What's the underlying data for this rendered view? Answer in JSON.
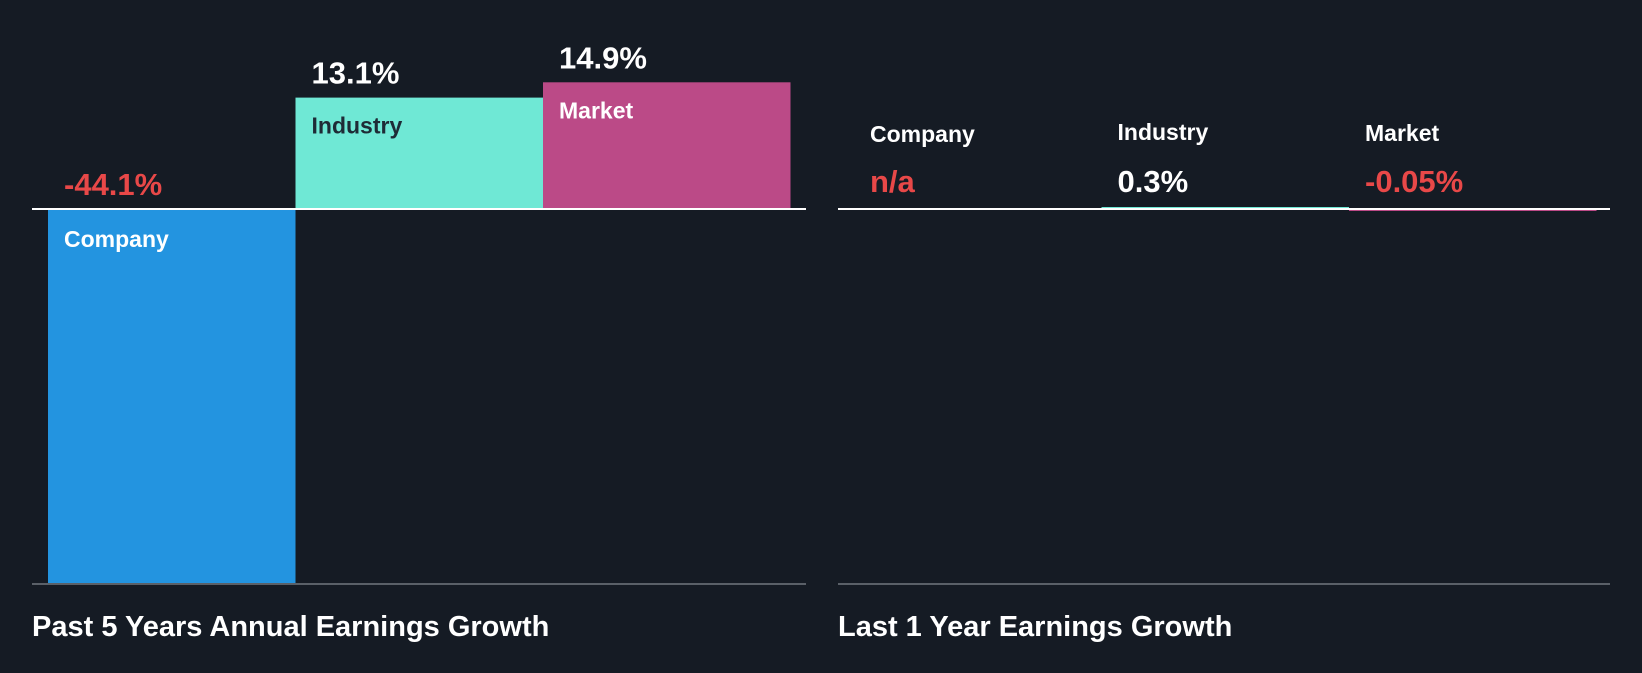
{
  "colors": {
    "background": "#151b24",
    "company": "#2394e0",
    "industry": "#6fe8d5",
    "market": "#bb4a87",
    "negative": "#e84848",
    "positive": "#ffffff",
    "axis": "#ffffff",
    "baseline": "#5a6068",
    "dark_label": "#1e2b36"
  },
  "chart_data": [
    {
      "type": "bar",
      "title": "Past 5 Years Annual Earnings Growth",
      "categories": [
        "Company",
        "Industry",
        "Market"
      ],
      "values": [
        -44.1,
        13.1,
        14.9
      ],
      "value_labels": [
        "-44.1%",
        "13.1%",
        "14.9%"
      ],
      "units": "%"
    },
    {
      "type": "bar",
      "title": "Last 1 Year Earnings Growth",
      "categories": [
        "Company",
        "Industry",
        "Market"
      ],
      "values": [
        null,
        0.3,
        -0.05
      ],
      "value_labels": [
        "n/a",
        "0.3%",
        "-0.05%"
      ],
      "units": "%"
    }
  ]
}
